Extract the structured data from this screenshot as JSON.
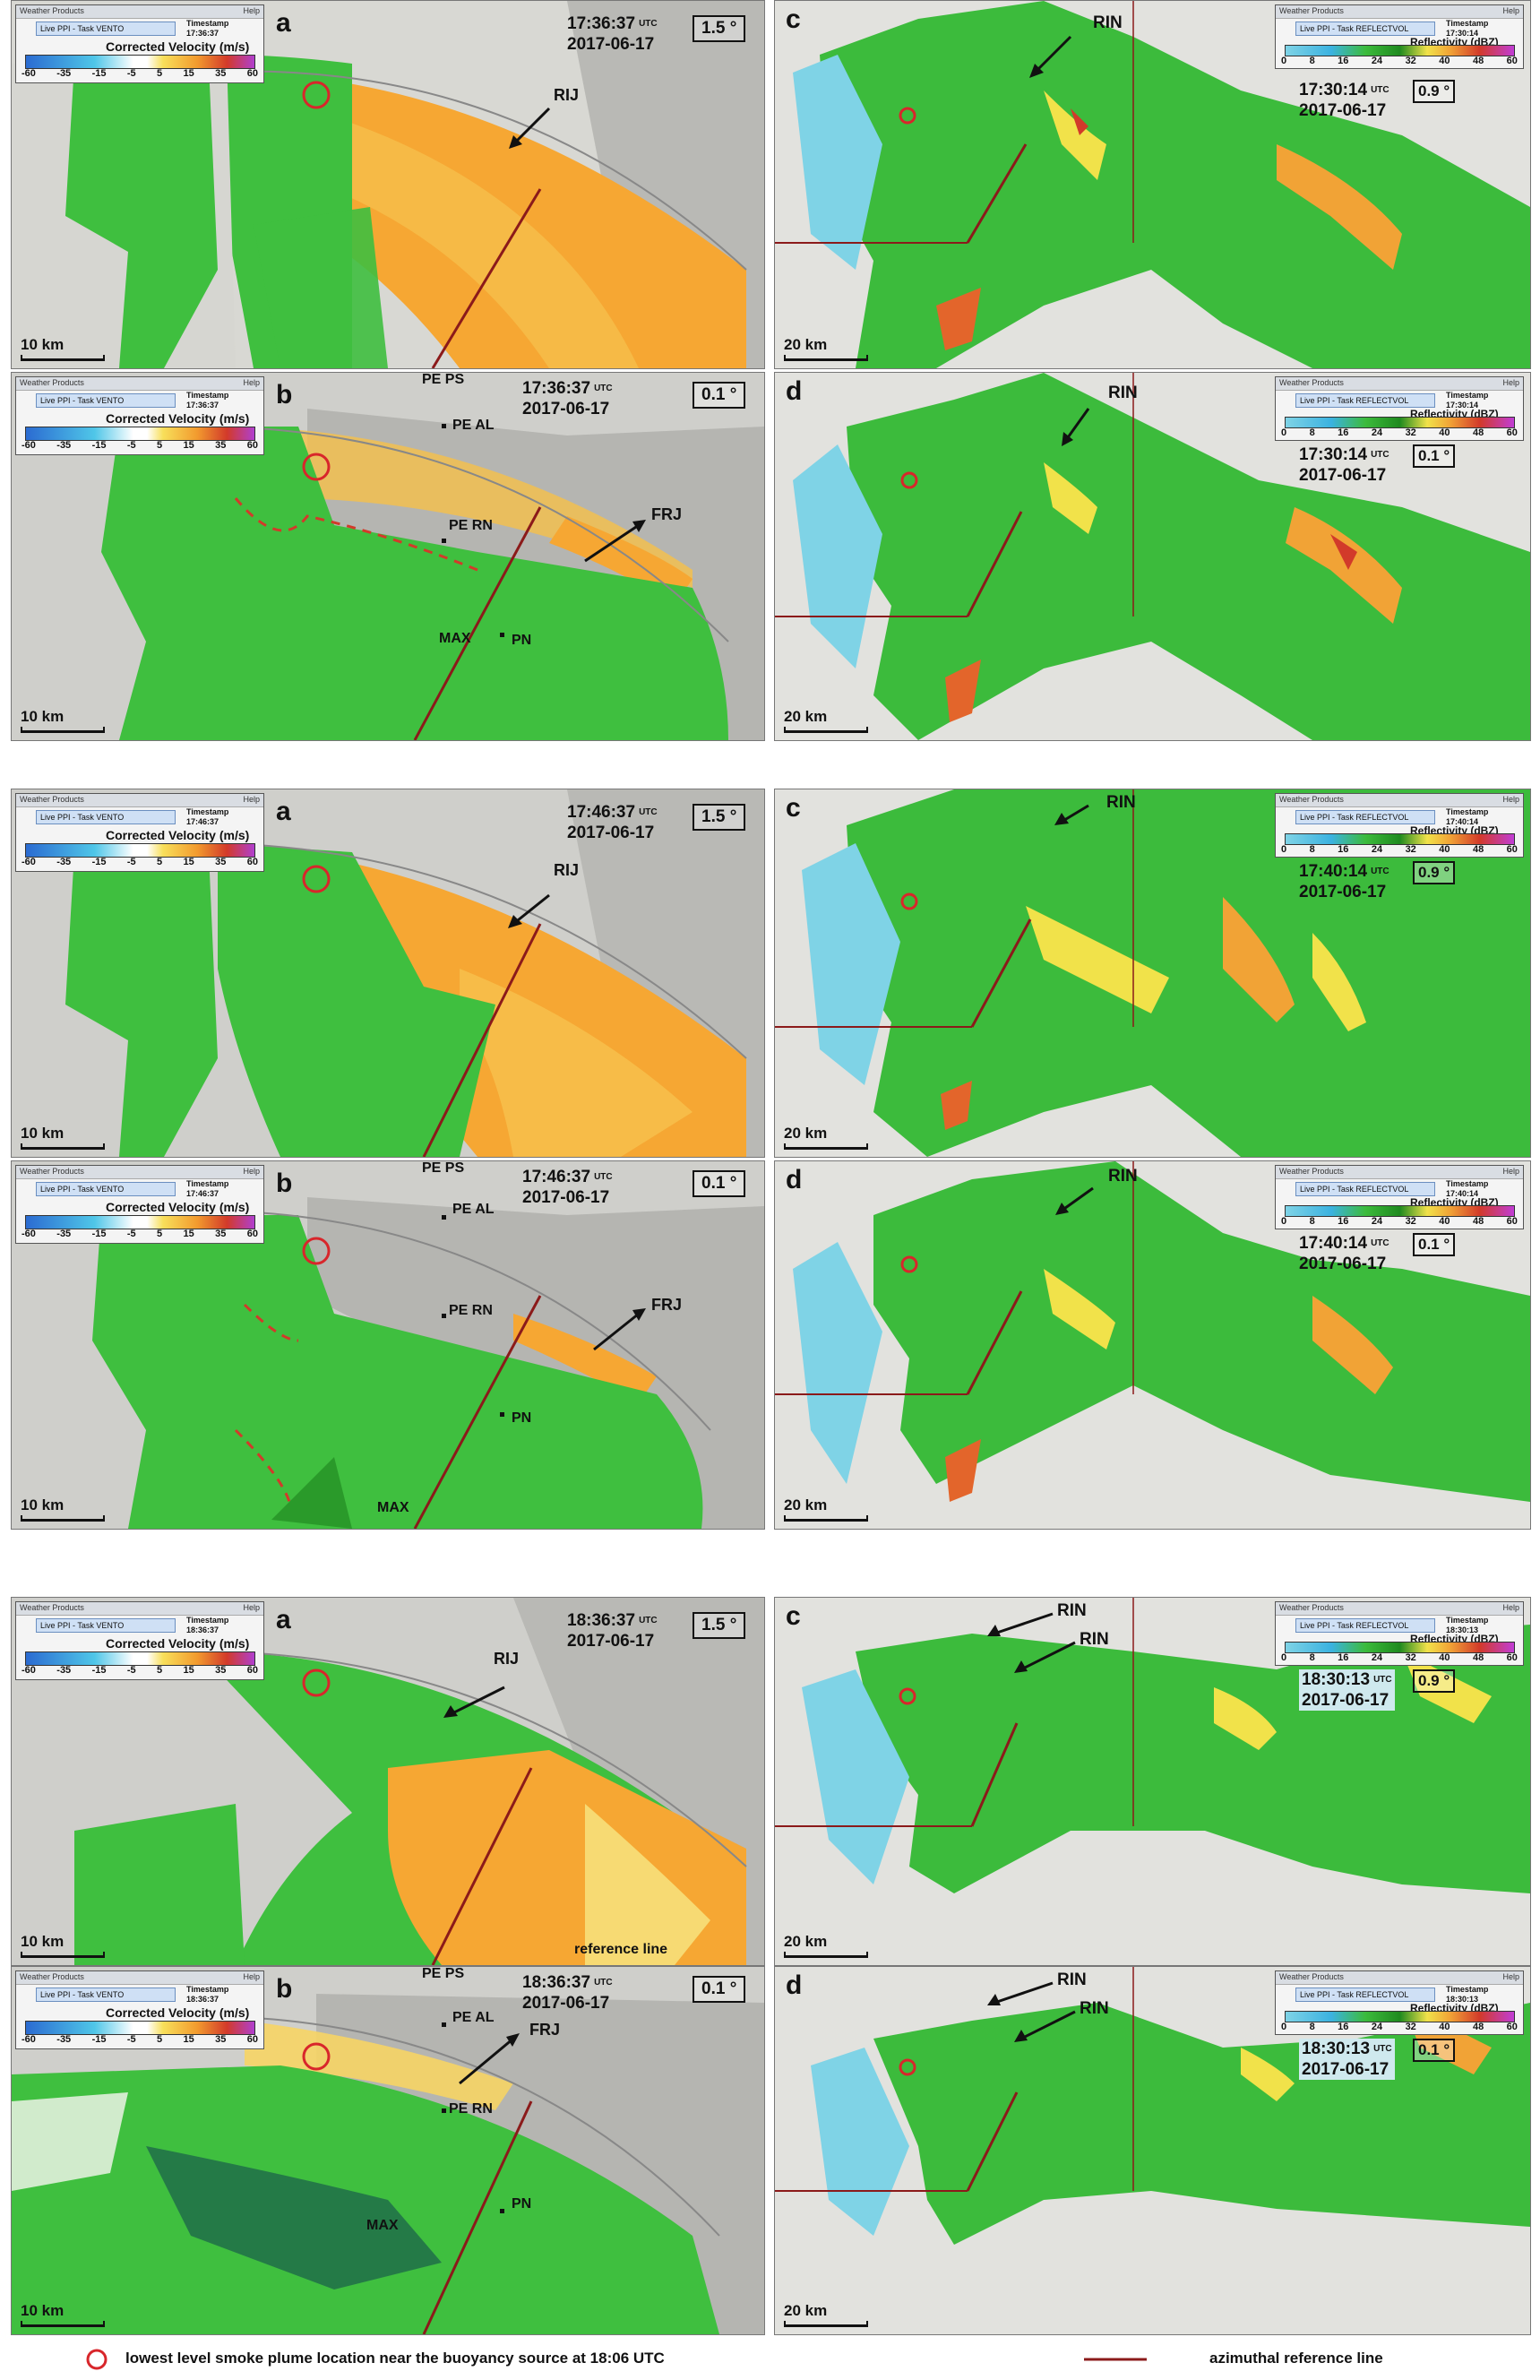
{
  "legend_box": {
    "header": "Weather Products",
    "help": "Help",
    "task_velocity": "Live PPI - Task VENTO",
    "task_reflectivity": "Live PPI - Task REFLECTVOL",
    "timestamp_label": "Timestamp",
    "velocity_title": "Corrected Velocity (m/s)",
    "velocity_ticks": [
      "-60",
      "-35",
      "-15",
      "-5",
      "5",
      "15",
      "35",
      "60"
    ],
    "reflectivity_title": "Reflectivity (dBZ)",
    "reflectivity_ticks": [
      "0",
      "8",
      "16",
      "24",
      "32",
      "40",
      "48",
      "60"
    ]
  },
  "labels": {
    "date": "2017-06-17",
    "utc": "UTC",
    "elev_high": "1.5 °",
    "elev_low": "0.1 °",
    "elev_c": "0.9 °",
    "scale_10": "10 km",
    "scale_20": "20 km",
    "rij": "RIJ",
    "frj": "FRJ",
    "rin": "RIN",
    "pe_ps": "PE PS",
    "pe_al": "PE AL",
    "pe_rn": "PE RN",
    "pn": "PN",
    "max": "MAX",
    "reference_line": "reference line",
    "a": "a",
    "b": "b",
    "c": "c",
    "d": "d"
  },
  "groups": [
    {
      "vel_time": "17:36:37",
      "ref_time": "17:30:14",
      "ref_elev_d": "0.1 °"
    },
    {
      "vel_time": "17:46:37",
      "ref_time": "17:40:14",
      "ref_elev_d": "0.1 °"
    },
    {
      "vel_time": "18:36:37",
      "ref_time": "18:30:13",
      "ref_elev_d": "0.1 °"
    }
  ],
  "bottom_legend": {
    "plume": "lowest level smoke plume location near the buoyancy source at 18:06 UTC",
    "reference": "azimuthal reference line"
  },
  "colors": {
    "plume_circle": "#d8262b",
    "reference_line": "#8b1a1a",
    "velocity_green": "#3fbf3f",
    "velocity_orange": "#f6a733",
    "reflectivity_green": "#3cbb3c",
    "reflectivity_cyan": "#7fd3e6"
  }
}
